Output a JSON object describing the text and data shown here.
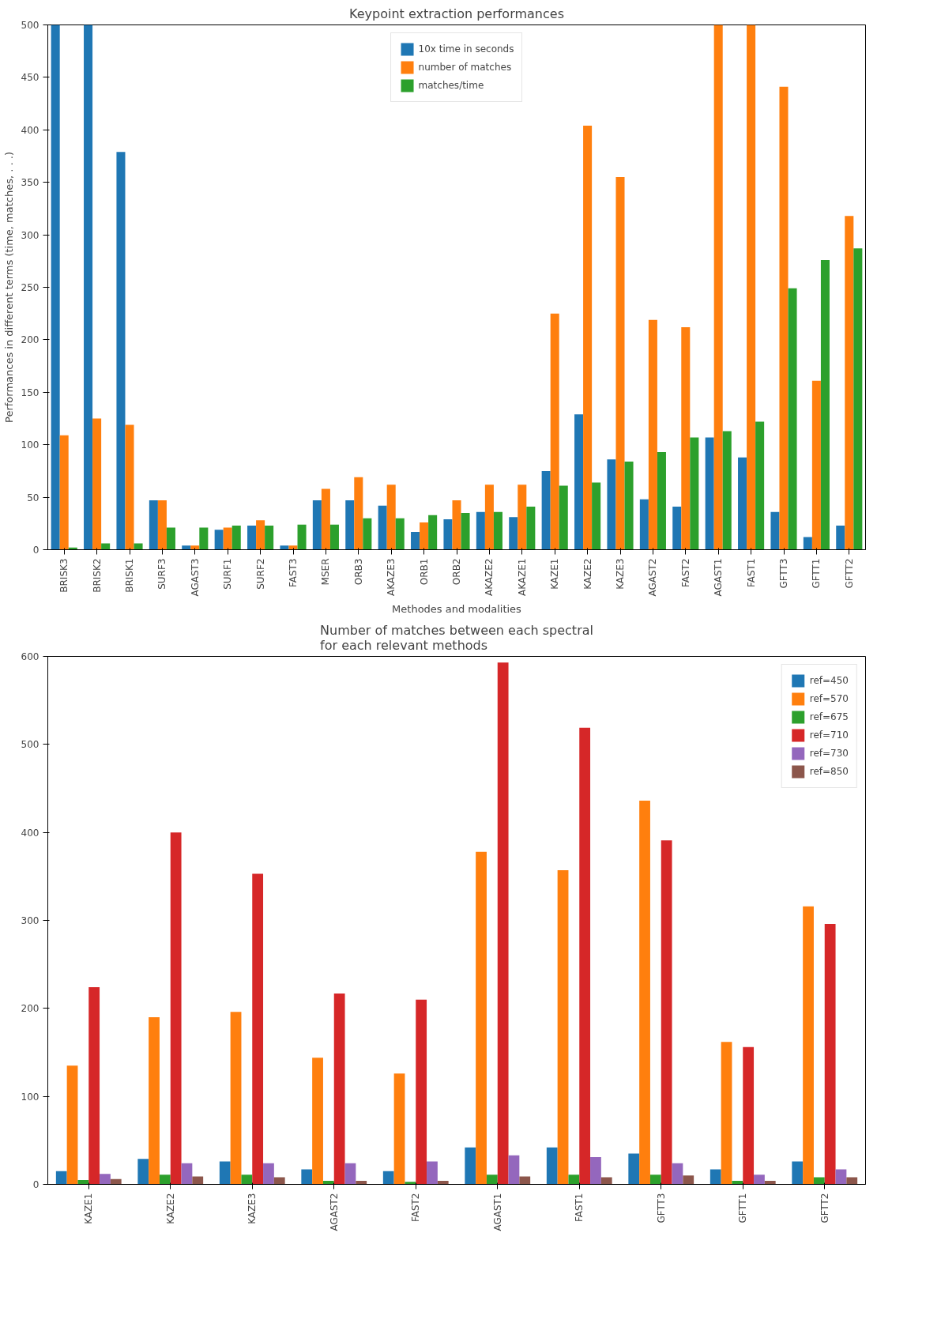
{
  "chart_data": [
    {
      "type": "bar",
      "title": "Keypoint extraction performances",
      "xlabel": "Methodes and modalities",
      "ylabel": "Performances in different terms (time, matches, . . .)",
      "categories": [
        "BRISK3",
        "BRISK2",
        "BRISK1",
        "SURF3",
        "AGAST3",
        "SURF1",
        "SURF2",
        "FAST3",
        "MSER",
        "ORB3",
        "AKAZE3",
        "ORB1",
        "ORB2",
        "AKAZE2",
        "AKAZE1",
        "KAZE1",
        "KAZE2",
        "KAZE3",
        "AGAST2",
        "FAST2",
        "AGAST1",
        "FAST1",
        "GFTT3",
        "GFTT1",
        "GFTT2"
      ],
      "series": [
        {
          "name": "10x time in seconds",
          "color": "#1f77b4",
          "values": [
            500,
            500,
            379,
            47,
            4,
            19,
            23,
            4,
            47,
            47,
            42,
            17,
            29,
            36,
            31,
            75,
            129,
            86,
            48,
            41,
            107,
            88,
            36,
            12,
            23
          ]
        },
        {
          "name": "number of matches",
          "color": "#ff7f0e",
          "values": [
            109,
            125,
            119,
            47,
            4,
            21,
            28,
            4,
            58,
            69,
            62,
            26,
            47,
            62,
            62,
            225,
            404,
            355,
            219,
            212,
            500,
            500,
            441,
            161,
            318
          ]
        },
        {
          "name": "matches/time",
          "color": "#2ca02c",
          "values": [
            2,
            6,
            6,
            21,
            21,
            23,
            23,
            24,
            24,
            30,
            30,
            33,
            35,
            36,
            41,
            61,
            64,
            84,
            93,
            107,
            113,
            122,
            249,
            276,
            287
          ]
        }
      ],
      "ylim": [
        0,
        500
      ],
      "yticks": [
        0,
        50,
        100,
        150,
        200,
        250,
        300,
        350,
        400,
        450,
        500
      ],
      "legend": "top"
    },
    {
      "type": "bar",
      "title": "Number of matches between each spectral\nfor each relevant methods",
      "categories": [
        "KAZE1",
        "KAZE2",
        "KAZE3",
        "AGAST2",
        "FAST2",
        "AGAST1",
        "FAST1",
        "GFTT3",
        "GFTT1",
        "GFTT2"
      ],
      "series": [
        {
          "name": "ref=450",
          "color": "#1f77b4",
          "values": [
            15,
            29,
            26,
            17,
            15,
            42,
            42,
            35,
            17,
            26
          ]
        },
        {
          "name": "ref=570",
          "color": "#ff7f0e",
          "values": [
            135,
            190,
            196,
            144,
            126,
            378,
            357,
            436,
            162,
            316
          ]
        },
        {
          "name": "ref=675",
          "color": "#2ca02c",
          "values": [
            5,
            11,
            11,
            4,
            3,
            11,
            11,
            11,
            4,
            8
          ]
        },
        {
          "name": "ref=710",
          "color": "#d62728",
          "values": [
            224,
            400,
            353,
            217,
            210,
            593,
            519,
            391,
            156,
            296
          ]
        },
        {
          "name": "ref=730",
          "color": "#9467bd",
          "values": [
            12,
            24,
            24,
            24,
            26,
            33,
            31,
            24,
            11,
            17
          ]
        },
        {
          "name": "ref=850",
          "color": "#8c564b",
          "values": [
            6,
            9,
            8,
            4,
            4,
            9,
            8,
            10,
            4,
            8
          ]
        }
      ],
      "ylim": [
        0,
        600
      ],
      "yticks": [
        0,
        100,
        200,
        300,
        400,
        500,
        600
      ],
      "legend": "top right"
    }
  ]
}
